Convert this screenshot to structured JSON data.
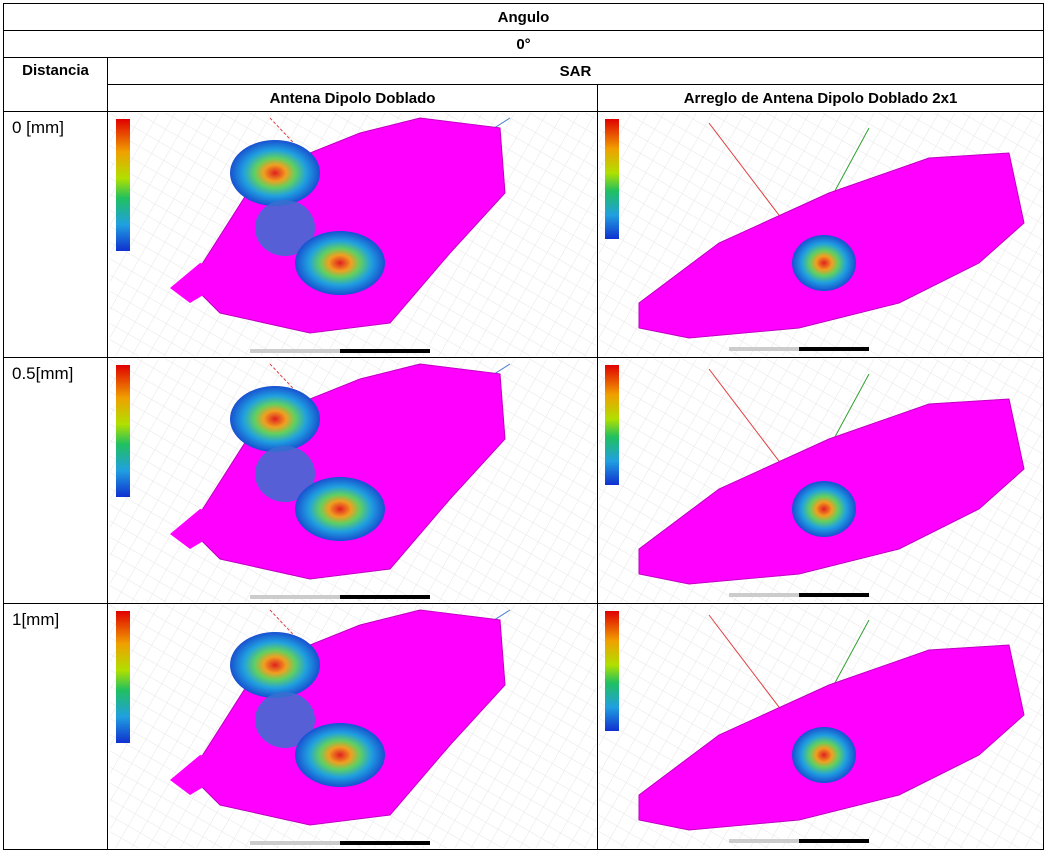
{
  "table": {
    "header": {
      "title": "Angulo",
      "angle": "0°"
    },
    "columns": {
      "distance": "Distancia",
      "sar": "SAR",
      "antenna_1": "Antena Dipolo Doblado",
      "antenna_2": "Arreglo de Antena Dipolo Doblado 2x1"
    },
    "rows": [
      {
        "distance": "0 [mm]"
      },
      {
        "distance": "0.5[mm]"
      },
      {
        "distance": "1[mm]"
      }
    ]
  }
}
